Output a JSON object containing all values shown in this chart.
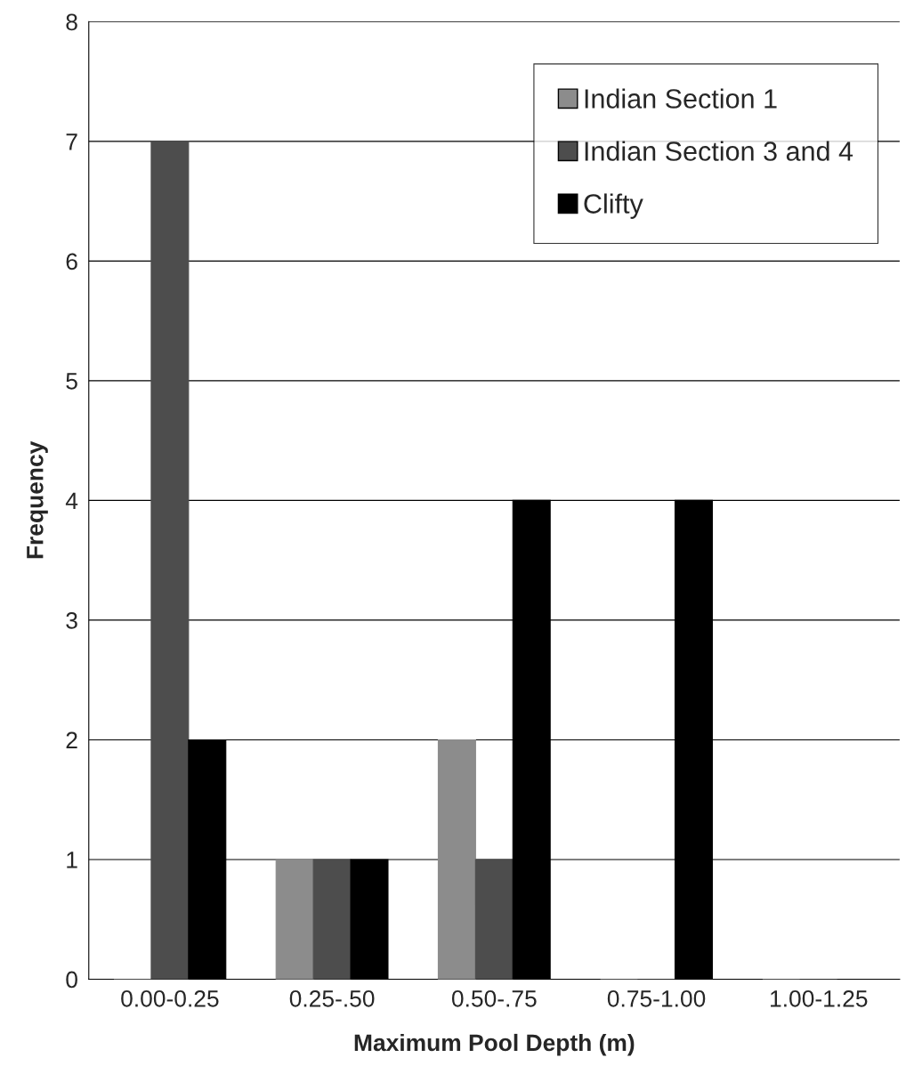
{
  "chart_data": {
    "type": "bar",
    "xlabel": "Maximum Pool Depth (m)",
    "ylabel": "Frequency",
    "categories": [
      "0.00-0.25",
      "0.25-.50",
      "0.50-.75",
      "0.75-1.00",
      "1.00-1.25"
    ],
    "series": [
      {
        "name": "Indian Section 1",
        "color": "#8c8c8c",
        "values": [
          0,
          1,
          2,
          0,
          0
        ]
      },
      {
        "name": "Indian Section 3 and 4",
        "color": "#4d4d4d",
        "values": [
          7,
          1,
          1,
          0,
          0
        ]
      },
      {
        "name": "Clifty",
        "color": "#000000",
        "values": [
          2,
          1,
          4,
          4,
          0
        ]
      }
    ],
    "ylim": [
      0,
      8
    ],
    "yticks": [
      0,
      1,
      2,
      3,
      4,
      5,
      6,
      7,
      8
    ],
    "grid": "y",
    "legend": "top right"
  }
}
